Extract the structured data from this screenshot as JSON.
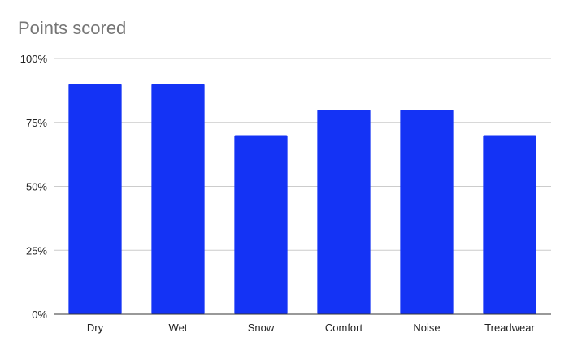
{
  "chart_data": {
    "type": "bar",
    "title": "Points scored",
    "xlabel": "",
    "ylabel": "",
    "categories": [
      "Dry",
      "Wet",
      "Snow",
      "Comfort",
      "Noise",
      "Treadwear"
    ],
    "values": [
      0.9,
      0.9,
      0.7,
      0.8,
      0.8,
      0.7
    ],
    "ylim": [
      0,
      1
    ],
    "yticks": [
      {
        "value": 0,
        "label": "0%"
      },
      {
        "value": 0.25,
        "label": "25%"
      },
      {
        "value": 0.5,
        "label": "50%"
      },
      {
        "value": 0.75,
        "label": "75%"
      },
      {
        "value": 1,
        "label": "100%"
      }
    ],
    "grid": true,
    "legend": "none",
    "colors": {
      "bar": "#1433f5",
      "grid": "#cccccc",
      "axis": "#333333",
      "title": "#757575"
    }
  }
}
